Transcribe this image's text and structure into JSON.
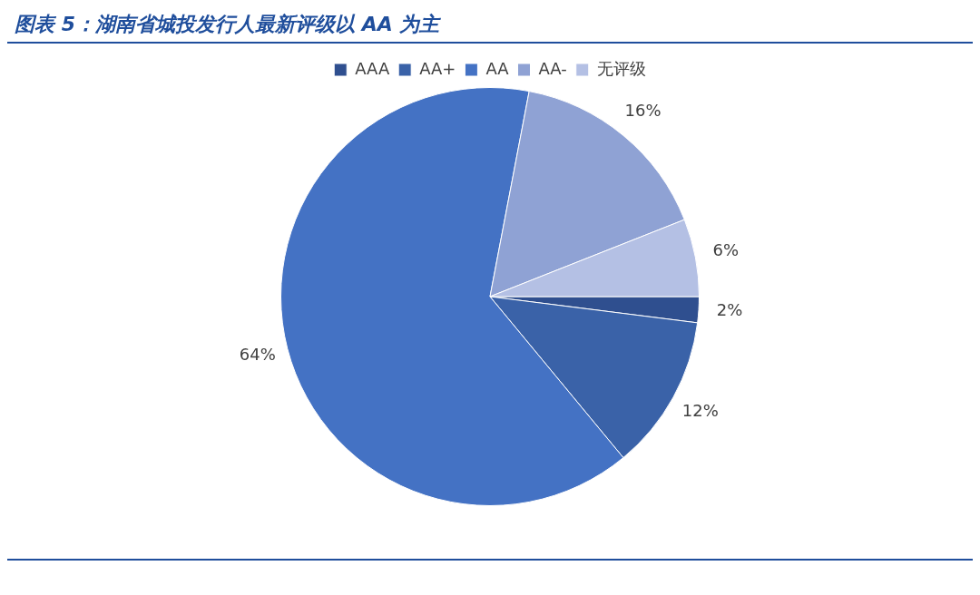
{
  "chart_data": {
    "type": "pie",
    "title": "图表 5：湖南省城投发行人最新评级以 AA 为主",
    "categories": [
      "AAA",
      "AA+",
      "AA",
      "AA-",
      "无评级"
    ],
    "values": [
      2,
      12,
      64,
      16,
      6
    ],
    "colors": [
      "#2f4f8f",
      "#3a62a8",
      "#4472c4",
      "#8fa2d4",
      "#b4c0e4"
    ],
    "value_labels": [
      "2%",
      "12%",
      "64%",
      "16%",
      "6%"
    ],
    "legend": "top"
  }
}
